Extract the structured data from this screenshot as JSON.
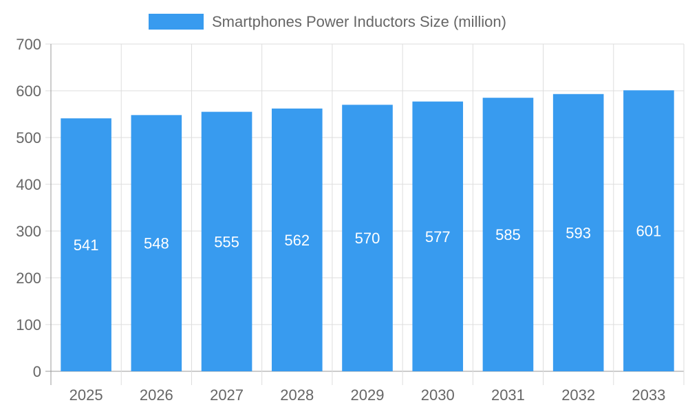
{
  "chart_data": {
    "type": "bar",
    "categories": [
      "2025",
      "2026",
      "2027",
      "2028",
      "2029",
      "2030",
      "2031",
      "2032",
      "2033"
    ],
    "series": [
      {
        "name": "Smartphones Power Inductors Size (million)",
        "values": [
          541,
          548,
          555,
          562,
          570,
          577,
          585,
          593,
          601
        ],
        "color": "#389bef"
      }
    ],
    "data_labels": [
      "541",
      "548",
      "555",
      "562",
      "570",
      "577",
      "585",
      "593",
      "601"
    ],
    "ylim": [
      0,
      700
    ],
    "yticks": [
      "0",
      "100",
      "200",
      "300",
      "400",
      "500",
      "600",
      "700"
    ],
    "grid": true,
    "legend_position": "top"
  }
}
